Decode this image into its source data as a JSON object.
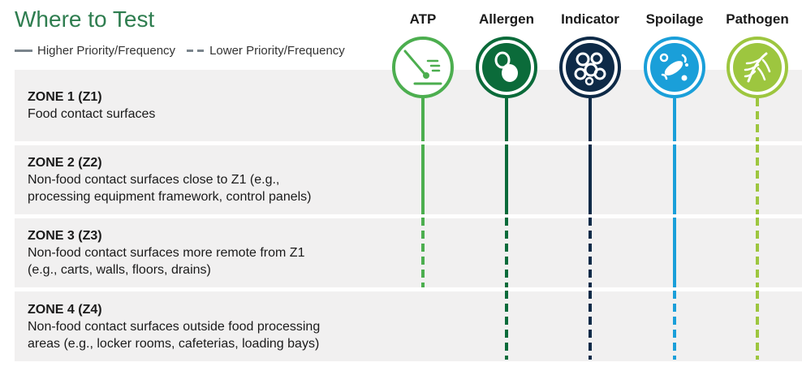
{
  "title": "Where to Test",
  "legend": {
    "solid_label": "Higher Priority/Frequency",
    "dashed_label": "Lower Priority/Frequency"
  },
  "zones": [
    {
      "title": "ZONE 1 (Z1)",
      "description": "Food contact surfaces"
    },
    {
      "title": "ZONE 2 (Z2)",
      "description": "Non-food contact surfaces close to Z1 (e.g.,\nprocessing equipment framework, control panels)"
    },
    {
      "title": "ZONE 3 (Z3)",
      "description": "Non-food contact surfaces more remote from Z1\n(e.g., carts, walls, floors, drains)"
    },
    {
      "title": "ZONE 4 (Z4)",
      "description": "Non-food contact surfaces outside food processing\nareas (e.g., locker rooms, cafeterias, loading bays)"
    }
  ],
  "categories": [
    {
      "label": "ATP",
      "icon": "swab-icon",
      "color": "#4cae4f",
      "zones": [
        "higher",
        "higher",
        "lower",
        "none"
      ]
    },
    {
      "label": "Allergen",
      "icon": "peanut-icon",
      "color": "#0b6b3a",
      "zones": [
        "higher",
        "higher",
        "lower",
        "lower"
      ]
    },
    {
      "label": "Indicator",
      "icon": "bacteria-cluster-icon",
      "color": "#0e2a47",
      "zones": [
        "higher",
        "higher",
        "lower",
        "lower"
      ]
    },
    {
      "label": "Spoilage",
      "icon": "microbes-icon",
      "color": "#1a9fd9",
      "zones": [
        "higher",
        "higher",
        "higher",
        "lower"
      ]
    },
    {
      "label": "Pathogen",
      "icon": "pathogen-icon",
      "color": "#9dc63f",
      "zones": [
        "lower",
        "lower",
        "lower",
        "lower"
      ]
    }
  ]
}
